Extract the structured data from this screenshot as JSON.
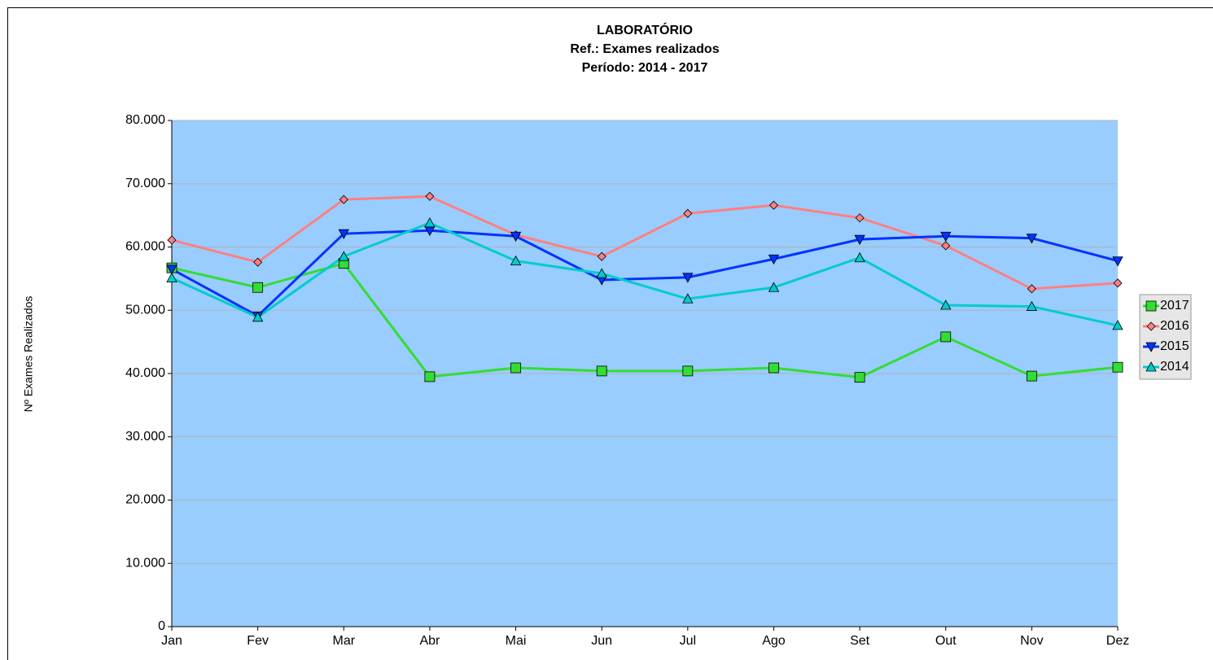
{
  "chart_data": {
    "type": "line",
    "title": [
      "LABORATÓRIO",
      "Ref.: Exames realizados",
      "Período: 2014 - 2017"
    ],
    "y_label": "Nº Exames Realizados",
    "categories": [
      "Jan",
      "Fev",
      "Mar",
      "Abr",
      "Mai",
      "Jun",
      "Jul",
      "Ago",
      "Set",
      "Out",
      "Nov",
      "Dez"
    ],
    "series": [
      {
        "name": "2017",
        "color": "#33dd33",
        "marker": "square",
        "values": [
          56700,
          53600,
          57400,
          39500,
          40900,
          40400,
          40400,
          40900,
          39400,
          45800,
          39600,
          41000
        ]
      },
      {
        "name": "2016",
        "color": "#ff8080",
        "marker": "diamond",
        "values": [
          61100,
          57600,
          67500,
          68000,
          61900,
          58500,
          65300,
          66600,
          64600,
          60200,
          53400,
          54300
        ]
      },
      {
        "name": "2015",
        "color": "#0033ff",
        "marker": "triangle-down",
        "values": [
          56500,
          49100,
          62100,
          62600,
          61700,
          54800,
          55200,
          58100,
          61200,
          61700,
          61400,
          57800
        ]
      },
      {
        "name": "2014",
        "color": "#00cccc",
        "marker": "triangle-up",
        "values": [
          55100,
          48900,
          58500,
          63800,
          57800,
          55800,
          51800,
          53600,
          58300,
          50800,
          50600,
          47600
        ]
      }
    ],
    "ylim": [
      0,
      80000
    ],
    "yticks": [
      0,
      {
        "value": 10000,
        "label": "10.000"
      },
      {
        "value": 20000,
        "label": "20.000"
      },
      {
        "value": 30000,
        "label": "30.000"
      },
      {
        "value": 40000,
        "label": "40.000"
      },
      {
        "value": 50000,
        "label": "50.000"
      },
      {
        "value": 60000,
        "label": "60.000"
      },
      {
        "value": 70000,
        "label": "70.000"
      },
      {
        "value": 80000,
        "label": "80.000"
      }
    ],
    "grid": true,
    "plot_background": "#99ccff",
    "legend": "right"
  }
}
